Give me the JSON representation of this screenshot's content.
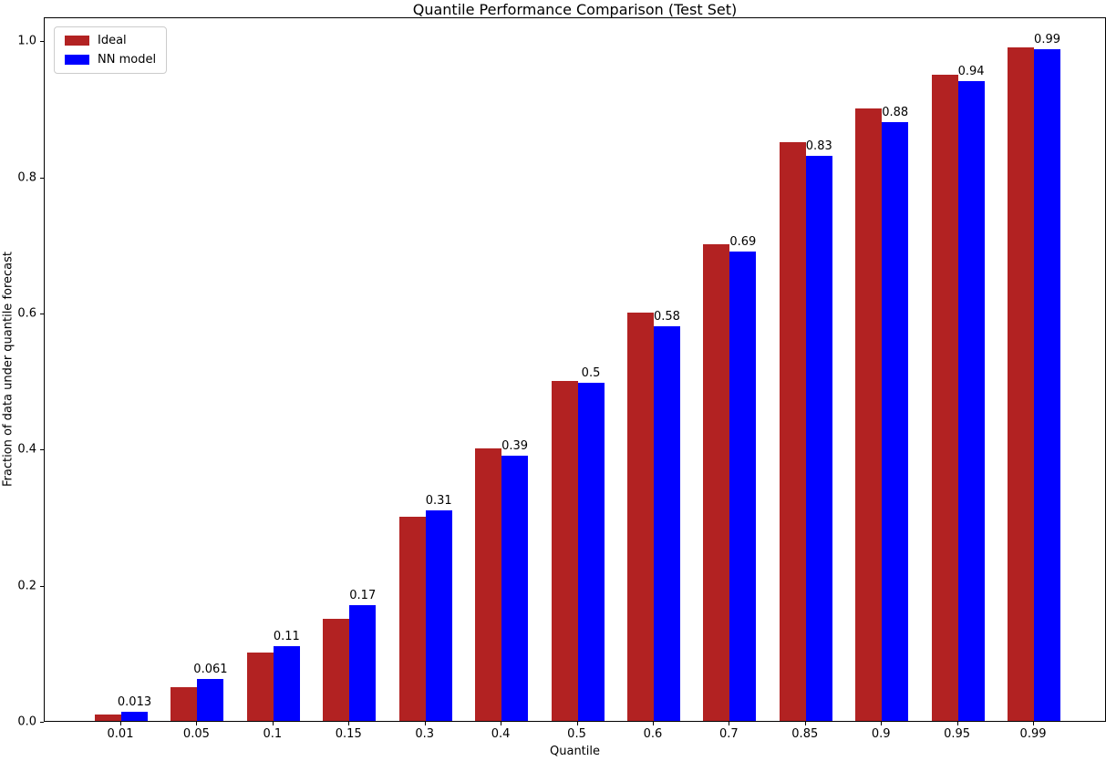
{
  "chart_data": {
    "type": "bar",
    "title": "Quantile Performance Comparison (Test Set)",
    "xlabel": "Quantile",
    "ylabel": "Fraction of data under quantile forecast",
    "categories": [
      "0.01",
      "0.05",
      "0.1",
      "0.15",
      "0.3",
      "0.4",
      "0.5",
      "0.6",
      "0.7",
      "0.85",
      "0.9",
      "0.95",
      "0.99"
    ],
    "series": [
      {
        "name": "Ideal",
        "color": "#b22222",
        "values": [
          0.01,
          0.05,
          0.1,
          0.15,
          0.3,
          0.4,
          0.5,
          0.6,
          0.7,
          0.85,
          0.9,
          0.95,
          0.99
        ]
      },
      {
        "name": "NN model",
        "color": "#0000ff",
        "values": [
          0.013,
          0.061,
          0.11,
          0.17,
          0.31,
          0.39,
          0.497,
          0.58,
          0.69,
          0.83,
          0.88,
          0.94,
          0.987
        ],
        "bar_labels": [
          "0.013",
          "0.061",
          "0.11",
          "0.17",
          "0.31",
          "0.39",
          "0.5",
          "0.58",
          "0.69",
          "0.83",
          "0.88",
          "0.94",
          "0.99"
        ]
      }
    ],
    "yticks": [
      0.0,
      0.2,
      0.4,
      0.6,
      0.8,
      1.0
    ],
    "ytick_labels": [
      "0.0",
      "0.2",
      "0.4",
      "0.6",
      "0.8",
      "1.0"
    ],
    "ylim": [
      0,
      1.035
    ],
    "grid": false,
    "legend": {
      "position": "upper left",
      "entries": [
        "Ideal",
        "NN model"
      ]
    }
  }
}
